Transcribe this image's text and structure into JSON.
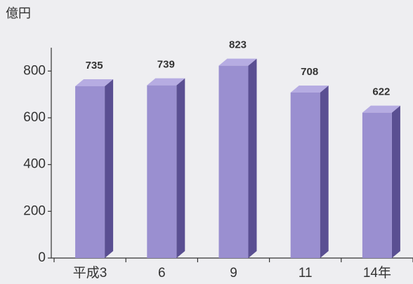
{
  "chart_data": {
    "type": "bar3d",
    "y_axis_label": "億円",
    "categories": [
      "平成3",
      "6",
      "9",
      "11",
      "14年"
    ],
    "values": [
      735,
      739,
      823,
      708,
      622
    ],
    "color": "#9a8fd0",
    "ylim": [
      0,
      900
    ],
    "yticks": [
      0,
      200,
      400,
      600,
      800
    ],
    "grid": false
  }
}
